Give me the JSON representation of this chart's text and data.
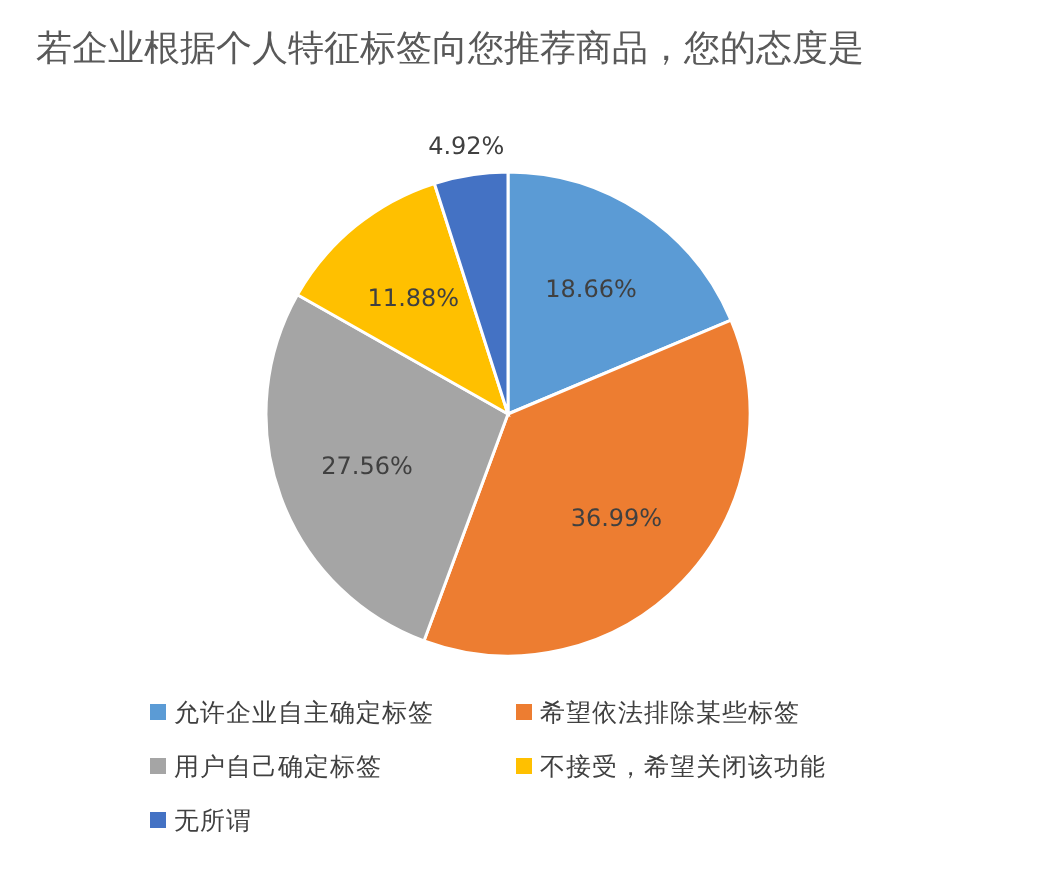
{
  "chart_data": {
    "type": "pie",
    "title": "若企业根据个人特征标签向您推荐商品，您的态度是",
    "categories": [
      "允许企业自主确定标签",
      "希望依法排除某些标签",
      "用户自己确定标签",
      "不接受，希望关闭该功能",
      "无所谓"
    ],
    "values": [
      18.66,
      36.99,
      27.56,
      11.88,
      4.92
    ],
    "colors": [
      "#5b9bd5",
      "#ed7d31",
      "#a5a5a5",
      "#ffc000",
      "#4472c4"
    ],
    "value_labels": [
      "18.66%",
      "36.99%",
      "27.56%",
      "11.88%",
      "4.92%"
    ],
    "legend": "bottom"
  }
}
